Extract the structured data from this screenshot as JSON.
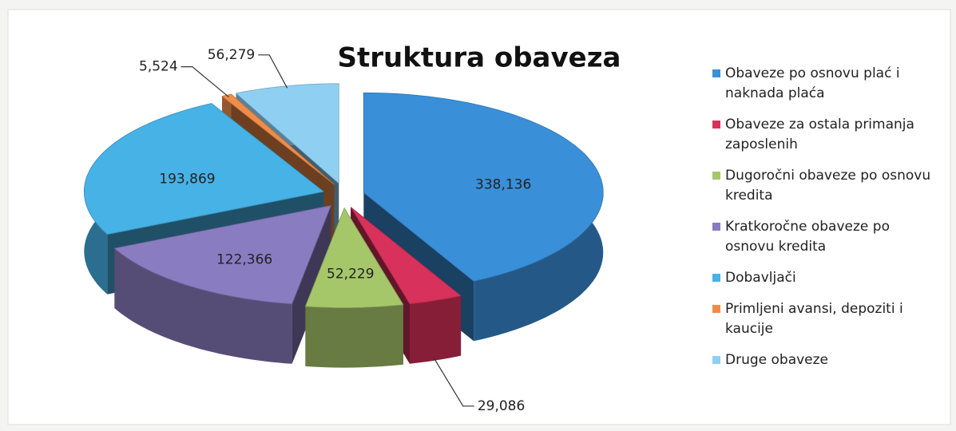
{
  "chart_data": {
    "type": "pie",
    "title": "Struktura obaveza",
    "categories": [
      "Obaveze po osnovu plać i naknada plaća",
      "Obaveze za ostala primanja zaposlenih",
      "Dugoročni obaveze po osnovu kredita",
      "Kratkoročne obaveze po osnovu kredita",
      "Dobavljači",
      "Primljeni avansi, depoziti i kaucije",
      "Druge obaveze"
    ],
    "values": [
      338136,
      29086,
      52229,
      122366,
      193869,
      5524,
      56279
    ],
    "value_labels": [
      "338,136",
      "29,086",
      "52,229",
      "122,366",
      "193,869",
      "5,524",
      "56,279"
    ],
    "colors": [
      "#3a8fd9",
      "#d8315b",
      "#a6c66a",
      "#8a7cc0",
      "#46b2e6",
      "#f08c4a",
      "#8fd0f2"
    ],
    "legend": "right"
  }
}
